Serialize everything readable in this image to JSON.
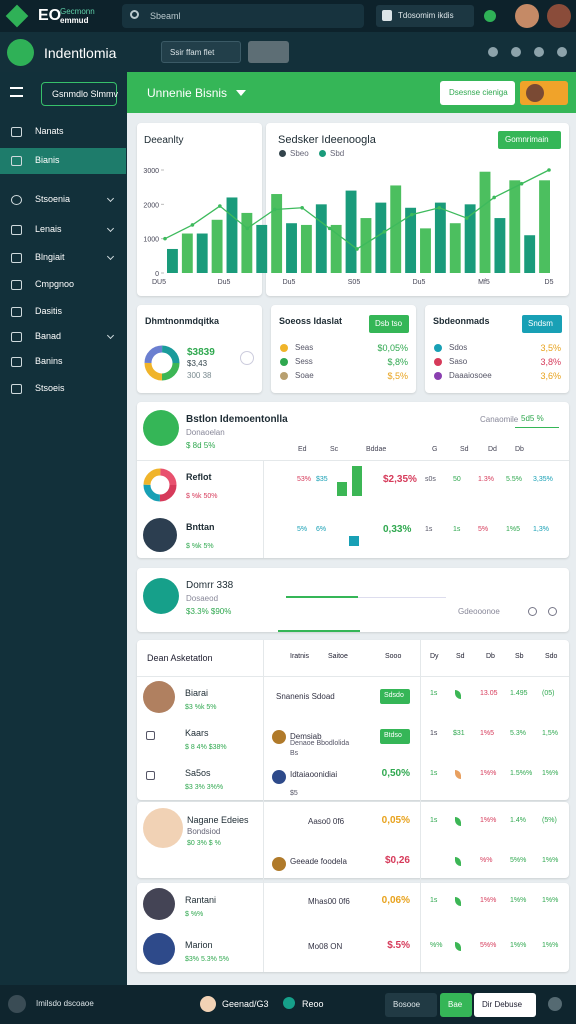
{
  "topbar": {
    "brand": "EO",
    "brand_sub": [
      "Gecmonn",
      "emmud"
    ],
    "search": "Sbeaml",
    "action": "Tdosomim ikdis"
  },
  "appbar": {
    "title": "Indentlomia",
    "select": "Ssir ffam flet"
  },
  "sidebar": {
    "menu_button": "Gsnmdlo Slmmv",
    "items": [
      "Nanats",
      "Bianis",
      "Stsoenia",
      "Lenais",
      "Blngiait",
      "Cmpgnoo",
      "Dasitis",
      "Banad",
      "Banins",
      "Stsoeis"
    ],
    "active": 1
  },
  "header": {
    "title": "Unnenie Bisnis",
    "button": "Dsesnse cieniga"
  },
  "overview": {
    "title": "Deeanlty",
    "chart_title": "Sedsker Ideenoogla",
    "legend": [
      "Sbeo",
      "Sbd"
    ],
    "button": "Gomnrimain",
    "ylim": [
      0,
      3000
    ],
    "yticks": [
      0,
      1000,
      2000,
      3000
    ],
    "xlabels": [
      "DU5",
      "Du5",
      "Du5",
      "S05",
      "Du5",
      "Mf5",
      "D5"
    ],
    "bars": [
      700,
      1150,
      1150,
      1550,
      2200,
      1750,
      1400,
      2300,
      1450,
      1400,
      2000,
      1400,
      2400,
      1600,
      2050,
      2550,
      1900,
      1300,
      2050,
      1450,
      2000,
      2950,
      1600,
      2700,
      1100,
      2700
    ],
    "bar_colors": [
      "#1a9b7b",
      "#4cbf5f"
    ],
    "line": [
      1000,
      1400,
      1950,
      1300,
      1850,
      1900,
      1300,
      700,
      1200,
      1700,
      1900,
      1600,
      2200,
      2600,
      3000
    ],
    "line_color": "#3dba5c"
  },
  "metrics": [
    {
      "title": "Dhmtnonmdqitka",
      "values": [
        "$3839",
        "$3,43",
        "300 38"
      ]
    },
    {
      "title": "Soeoss Idaslat",
      "button": "Dsb tso",
      "rows": [
        [
          "Seas",
          "$0,05%"
        ],
        [
          "Sess",
          "$,8%"
        ],
        [
          "Soae",
          "$,5%"
        ]
      ]
    },
    {
      "title": "Sbdeonmads",
      "button": "Sndsm",
      "rows": [
        [
          "Sdos",
          "3,5%"
        ],
        [
          "Saso",
          "3,8%"
        ],
        [
          "Daaaiosoee",
          "3,6%"
        ]
      ]
    }
  ],
  "detail": {
    "title": "Bstlon Idemoentonlla",
    "sub": "Donaoelan",
    "stat": "$ 8d 5%",
    "filter_label": "Canaomile",
    "filter": "5d5 %",
    "columns": [
      "Ed",
      "Sc",
      "Bddae",
      "G",
      "Sd",
      "Dd",
      "Db"
    ],
    "rows": [
      {
        "name": "Reflot",
        "stat": "$ %k 50%",
        "a": "53%",
        "b": "$35",
        "bars": [
          14,
          30
        ],
        "val": "$2,35%",
        "cols": [
          "s0s",
          "50",
          "1.3%",
          "5.5%",
          "3,35%"
        ]
      },
      {
        "name": "Bnttan",
        "stat": "$ %k 5%",
        "a": "5%",
        "b": "6%",
        "bars": [
          10
        ],
        "val": "0,33%",
        "cols": [
          "1s",
          "1s",
          "5%",
          "1%5",
          "1,3%"
        ]
      }
    ]
  },
  "progress": {
    "title": "Domrr 338",
    "sub": "Dosaeod",
    "stat": "$3.3% $90%",
    "link": "Gdeooonoe"
  },
  "table": {
    "headers": [
      "Dean Asketatlon",
      "Iratnis",
      "Saitoe",
      "Sooo",
      "Dy",
      "Sd",
      "Db",
      "Sb",
      "Sdo"
    ],
    "rows": [
      {
        "name": "Biarai",
        "stat": "$3 %k 5%",
        "title": "Snanenis Sdoad",
        "badge": "Sdsdo",
        "cols": [
          "1s",
          "13.05",
          "1.495",
          "(05)"
        ]
      },
      {
        "name": "Kaars",
        "stat": "$ 8 4% $38%",
        "title": "Demsiab",
        "sub": "Denaoe Bbodlolida",
        "extra": "Bs",
        "badge": "Btdso",
        "cols": [
          "1s",
          "$31",
          "1%5",
          "5.3%",
          "1,5%"
        ]
      },
      {
        "name": "Sa5os",
        "stat": "$3 3% 3%%",
        "title": "Idtaiaoonidiai",
        "extra": "$5",
        "value": "0,50%",
        "value_color": "#2fa84f",
        "cols": [
          "1s",
          "1%%",
          "1.5%%",
          "1%%"
        ]
      },
      {
        "name": "Nagane Edeies",
        "sub": "Bondsiod",
        "stat": "$0 3% $ %",
        "title": "Aaso0 0f6",
        "value": "0,05%",
        "value_color": "#e8a21c",
        "cols": [
          "1s",
          "1%%",
          "1.4%",
          "(5%)"
        ]
      },
      {
        "title": "Geeade foodela",
        "value": "$0,26",
        "value_color": "#d63a5a",
        "cols": [
          "%%",
          "5%%",
          "1%%"
        ]
      },
      {
        "name": "Rantani",
        "stat": "$ %%",
        "title": "Mhas00 0f6",
        "value": "0,06%",
        "value_color": "#e8a21c",
        "cols": [
          "1s",
          "1%%",
          "1%%",
          "1%%"
        ]
      },
      {
        "name": "Marion",
        "stat": "$3% 5.3% 5%",
        "title": "Mo08 ON",
        "value": "$.5%",
        "value_color": "#d63a5a",
        "cols": [
          "%%",
          "5%%",
          "1%%",
          "1%%"
        ]
      }
    ]
  },
  "footer": {
    "user": "Imilsdo dscoaoe",
    "status": "Geenad/G3",
    "mode": "Reoo",
    "buttons": [
      "Bosooe",
      "Bae",
      "Dir Debuse"
    ]
  }
}
